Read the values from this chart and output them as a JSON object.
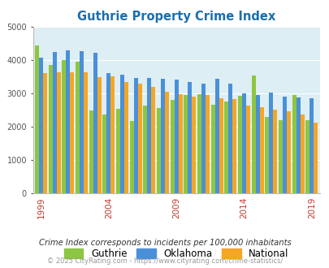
{
  "title": "Guthrie Property Crime Index",
  "title_color": "#1a6fad",
  "years": [
    1999,
    2000,
    2001,
    2002,
    2003,
    2004,
    2005,
    2006,
    2007,
    2008,
    2009,
    2010,
    2011,
    2012,
    2013,
    2014,
    2015,
    2016,
    2017,
    2018,
    2019
  ],
  "guthrie": [
    4450,
    3850,
    4000,
    3950,
    2480,
    2350,
    2520,
    2170,
    2620,
    2550,
    2810,
    2950,
    2970,
    2650,
    2750,
    2920,
    3540,
    2280,
    2190,
    2940,
    2180
  ],
  "oklahoma": [
    4060,
    4250,
    4300,
    4260,
    4220,
    3600,
    3550,
    3450,
    3460,
    3430,
    3400,
    3350,
    3290,
    3430,
    3280,
    3000,
    2950,
    3020,
    2890,
    2870,
    2840
  ],
  "national": [
    3600,
    3620,
    3620,
    3620,
    3480,
    3500,
    3340,
    3300,
    3200,
    3040,
    2960,
    2910,
    2940,
    2860,
    2820,
    2630,
    2590,
    2500,
    2470,
    2360,
    2110
  ],
  "guthrie_color": "#8dc641",
  "oklahoma_color": "#4a90d9",
  "national_color": "#f5a623",
  "bg_color": "#ddeef5",
  "ylim": [
    0,
    5000
  ],
  "yticks": [
    0,
    1000,
    2000,
    3000,
    4000,
    5000
  ],
  "xlabel_ticks": [
    1999,
    2004,
    2009,
    2014,
    2019
  ],
  "footer_text": "Crime Index corresponds to incidents per 100,000 inhabitants",
  "copyright_text": "© 2025 CityRating.com - https://www.cityrating.com/crime-statistics/",
  "legend_labels": [
    "Guthrie",
    "Oklahoma",
    "National"
  ]
}
